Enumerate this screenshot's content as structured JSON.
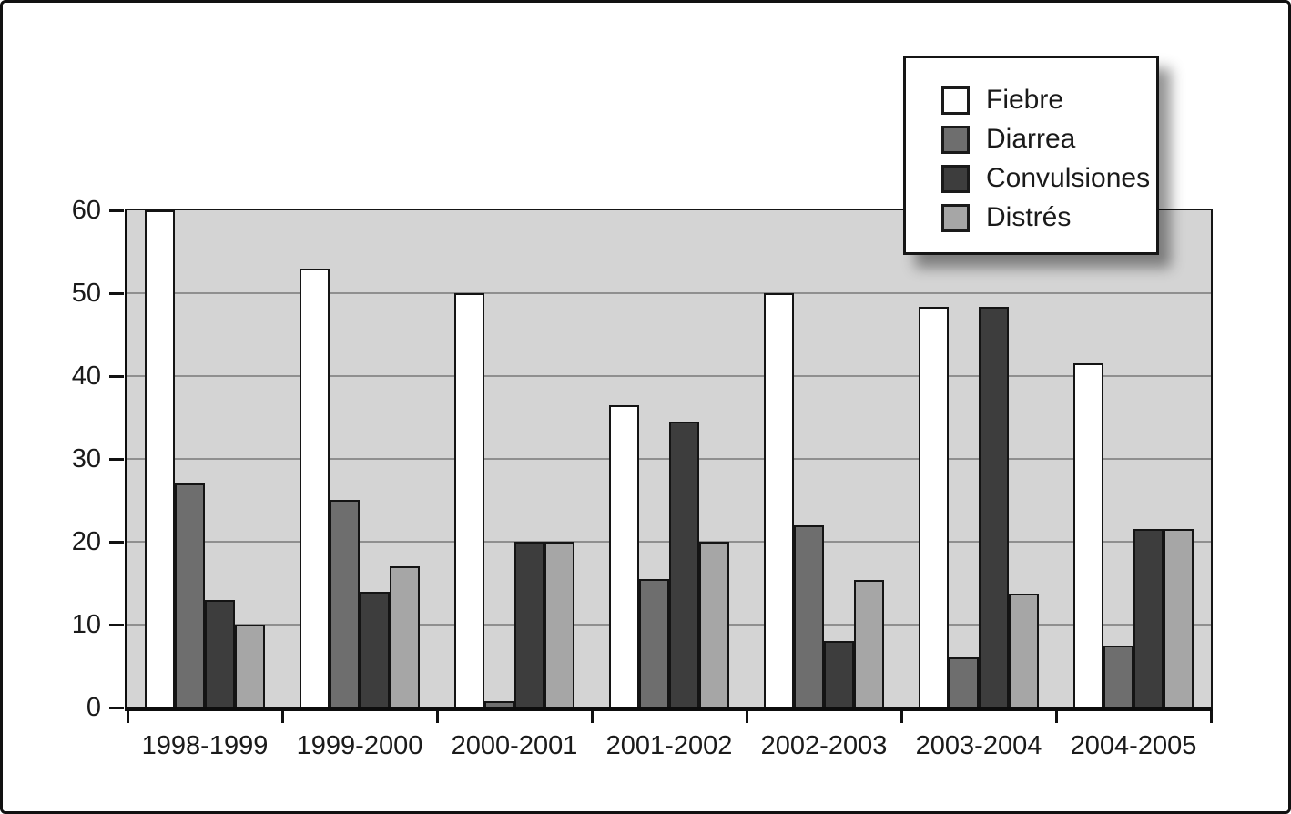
{
  "figure": {
    "background": "#ffffff",
    "border_color": "#111111"
  },
  "chart_data": {
    "type": "bar",
    "title": "",
    "xlabel": "",
    "ylabel": "",
    "categories": [
      "1998-1999",
      "1999-2000",
      "2000-2001",
      "2001-2002",
      "2002-2003",
      "2003-2004",
      "2004-2005"
    ],
    "series": [
      {
        "name": "Fiebre",
        "color": "#ffffff",
        "values": [
          60,
          53,
          50,
          36.5,
          50,
          48.3,
          41.5
        ]
      },
      {
        "name": "Diarrea",
        "color": "#6e6e6e",
        "values": [
          27,
          25,
          0.8,
          15.5,
          22,
          6,
          7.5
        ]
      },
      {
        "name": "Convulsiones",
        "color": "#3d3d3d",
        "values": [
          13,
          14,
          20,
          34.5,
          8,
          48.3,
          21.5
        ]
      },
      {
        "name": "Distrés",
        "color": "#a6a6a6",
        "values": [
          10,
          17,
          20,
          20,
          15.4,
          13.7,
          21.5
        ]
      }
    ],
    "ylim": [
      0,
      60
    ],
    "yticks": [
      0,
      10,
      20,
      30,
      40,
      50,
      60
    ],
    "grid": "horizontal",
    "gridline_color": "#8f8f8f",
    "plot_background": "#d4d4d4",
    "bar_outline_color": "#141414",
    "legend_position": "top-right"
  }
}
